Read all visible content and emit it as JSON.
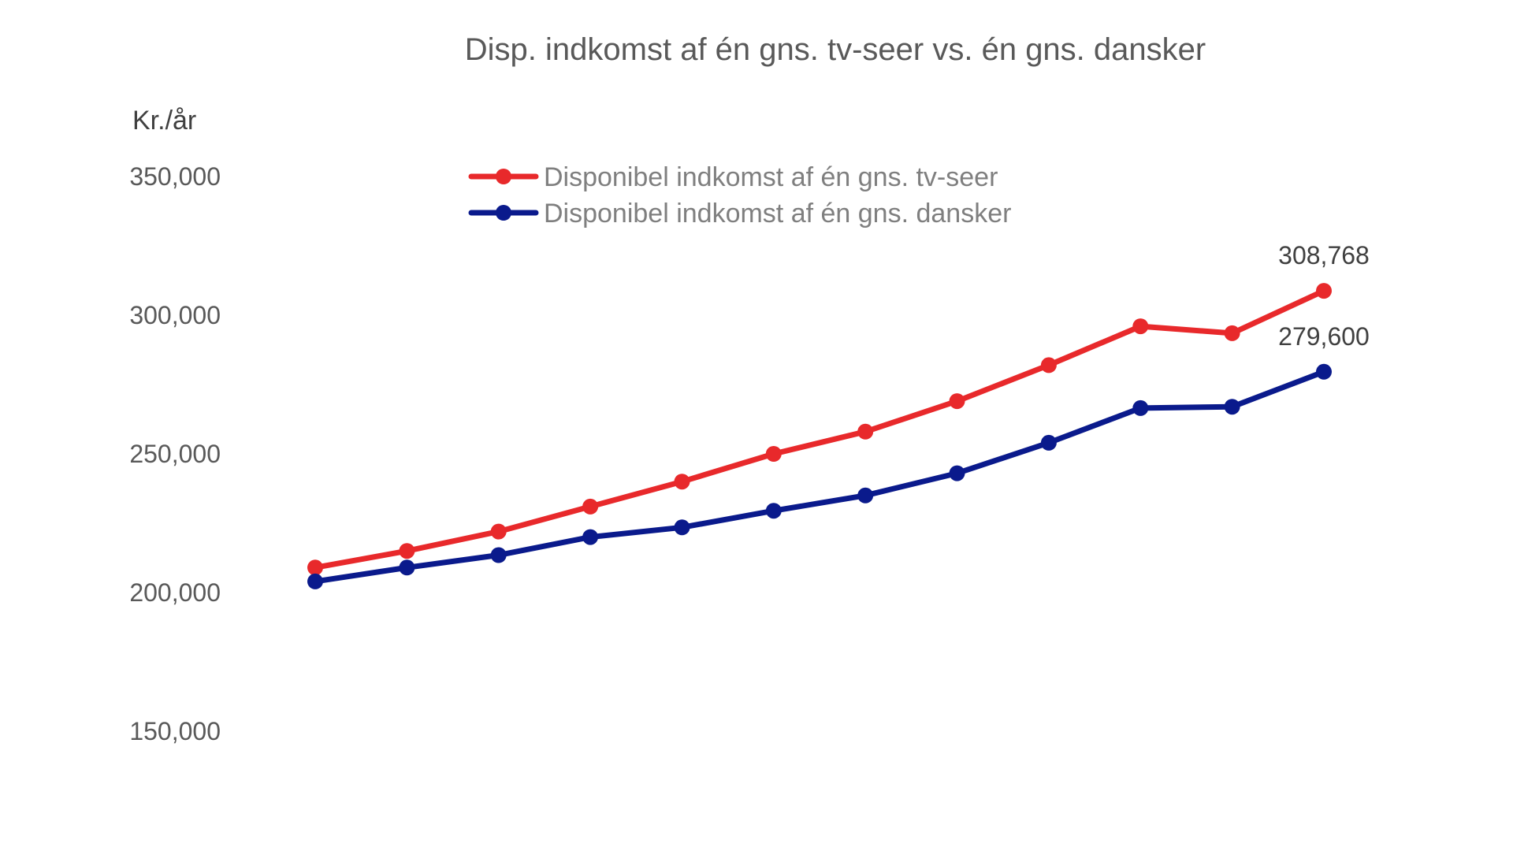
{
  "chart_data": {
    "type": "line",
    "title": "Disp. indkomst af én gns. tv-seer vs. én gns. dansker",
    "ylabel": "Kr./år",
    "xlabel": "",
    "ylim": [
      150000,
      350000
    ],
    "yticks": [
      350000,
      300000,
      250000,
      200000,
      150000
    ],
    "ytick_labels": [
      "350,000",
      "300,000",
      "250,000",
      "200,000",
      "150,000"
    ],
    "grid": false,
    "legend_position": "top-center",
    "x": [
      1,
      2,
      3,
      4,
      5,
      6,
      7,
      8,
      9,
      10,
      11,
      12
    ],
    "series": [
      {
        "name": "Disponibel indkomst af én gns. tv-seer",
        "color": "#e8292b",
        "values": [
          209000,
          215000,
          222000,
          231000,
          240000,
          250000,
          258000,
          269000,
          282000,
          296000,
          293500,
          308768
        ],
        "end_label": "308,768"
      },
      {
        "name": "Disponibel indkomst af én gns. dansker",
        "color": "#0a1a8c",
        "values": [
          204000,
          209000,
          213500,
          220000,
          223500,
          229500,
          235000,
          243000,
          254000,
          266500,
          267000,
          279600
        ],
        "end_label": "279,600"
      }
    ]
  }
}
